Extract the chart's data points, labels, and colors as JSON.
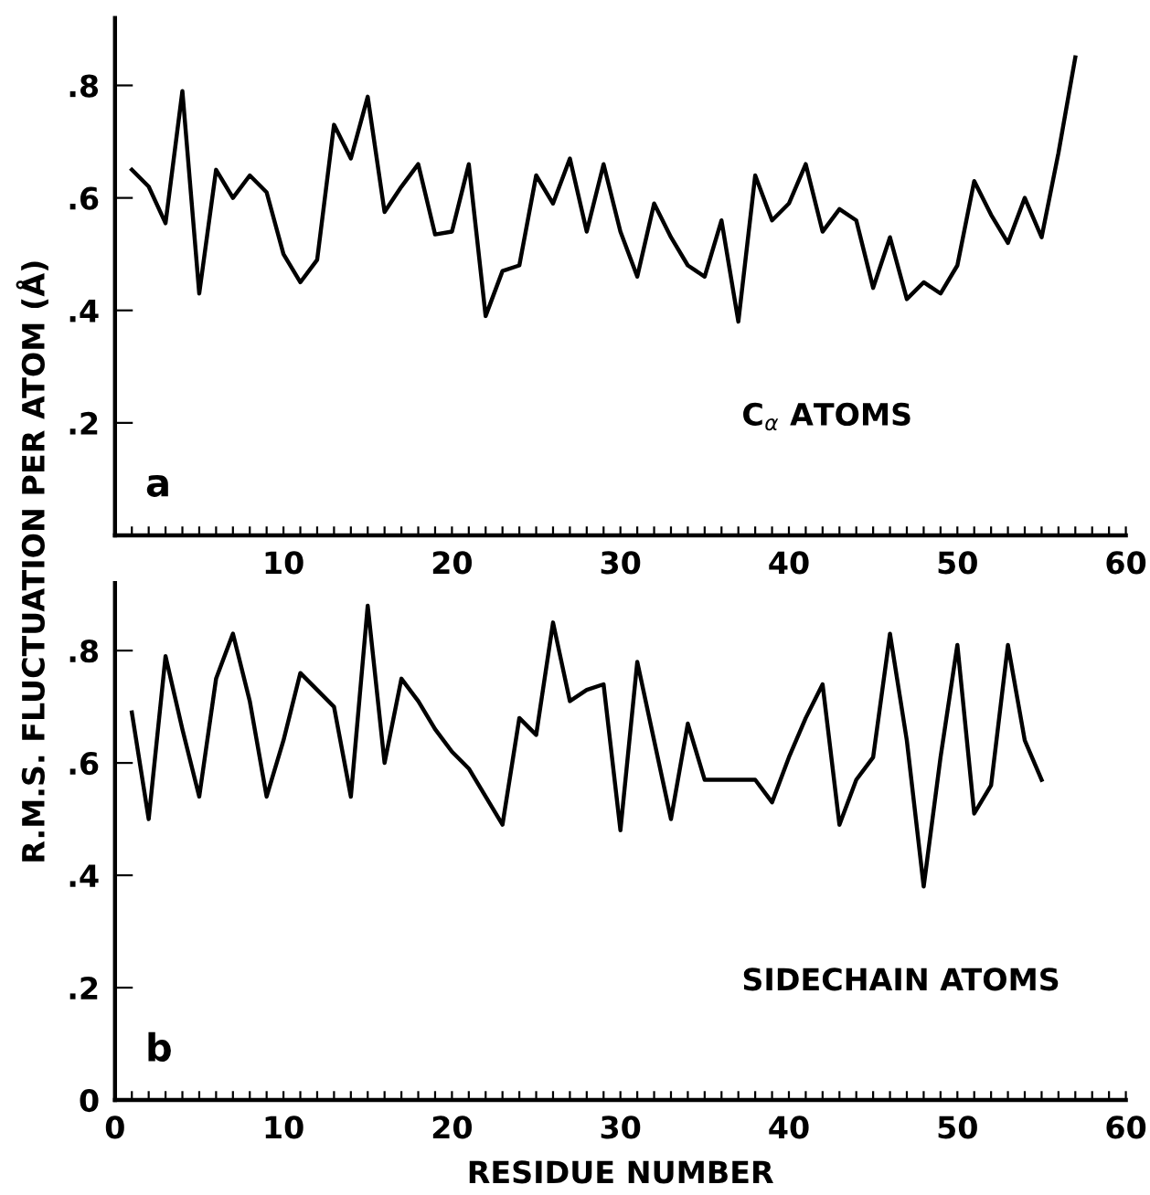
{
  "chart_data": [
    {
      "type": "line",
      "ylabel": "R.M.S. FLUCTUATION PER ATOM (Å)",
      "annotations": [
        "a",
        "C$_{α}$ ATOMS"
      ],
      "x": [
        1,
        2,
        3,
        4,
        5,
        6,
        7,
        8,
        9,
        10,
        11,
        12,
        13,
        14,
        15,
        16,
        17,
        18,
        19,
        20,
        21,
        22,
        23,
        24,
        25,
        26,
        27,
        28,
        29,
        30,
        31,
        32,
        33,
        34,
        35,
        36,
        37,
        38,
        39,
        40,
        41,
        42,
        43,
        44,
        45,
        46,
        47,
        48,
        49,
        50,
        51,
        52,
        53,
        54,
        55,
        56,
        57
      ],
      "series": [
        {
          "color": "#000000",
          "values": [
            0.65,
            0.62,
            0.555,
            0.79,
            0.43,
            0.65,
            0.6,
            0.64,
            0.61,
            0.5,
            0.45,
            0.49,
            0.73,
            0.67,
            0.78,
            0.575,
            0.62,
            0.66,
            0.535,
            0.54,
            0.66,
            0.39,
            0.47,
            0.48,
            0.64,
            0.59,
            0.67,
            0.54,
            0.66,
            0.54,
            0.46,
            0.59,
            0.53,
            0.48,
            0.46,
            0.56,
            0.38,
            0.64,
            0.56,
            0.59,
            0.66,
            0.54,
            0.58,
            0.56,
            0.44,
            0.53,
            0.42,
            0.45,
            0.43,
            0.48,
            0.63,
            0.57,
            0.52,
            0.6,
            0.53,
            0.68,
            0.85
          ]
        }
      ],
      "xlim": [
        0,
        60
      ],
      "ylim": [
        0,
        0.92
      ],
      "xticks": [
        {
          "value": 0,
          "label": null
        },
        {
          "value": 1,
          "label": null
        },
        {
          "value": 2,
          "label": null
        },
        {
          "value": 3,
          "label": null
        },
        {
          "value": 4,
          "label": null
        },
        {
          "value": 5,
          "label": null
        },
        {
          "value": 6,
          "label": null
        },
        {
          "value": 7,
          "label": null
        },
        {
          "value": 8,
          "label": null
        },
        {
          "value": 9,
          "label": null
        },
        10,
        {
          "value": 11,
          "label": null
        },
        {
          "value": 12,
          "label": null
        },
        {
          "value": 13,
          "label": null
        },
        {
          "value": 14,
          "label": null
        },
        {
          "value": 15,
          "label": null
        },
        {
          "value": 16,
          "label": null
        },
        {
          "value": 17,
          "label": null
        },
        {
          "value": 18,
          "label": null
        },
        {
          "value": 19,
          "label": null
        },
        20,
        {
          "value": 21,
          "label": null
        },
        {
          "value": 22,
          "label": null
        },
        {
          "value": 23,
          "label": null
        },
        {
          "value": 24,
          "label": null
        },
        {
          "value": 25,
          "label": null
        },
        {
          "value": 26,
          "label": null
        },
        {
          "value": 27,
          "label": null
        },
        {
          "value": 28,
          "label": null
        },
        {
          "value": 29,
          "label": null
        },
        30,
        {
          "value": 31,
          "label": null
        },
        {
          "value": 32,
          "label": null
        },
        {
          "value": 33,
          "label": null
        },
        {
          "value": 34,
          "label": null
        },
        {
          "value": 35,
          "label": null
        },
        {
          "value": 36,
          "label": null
        },
        {
          "value": 37,
          "label": null
        },
        {
          "value": 38,
          "label": null
        },
        {
          "value": 39,
          "label": null
        },
        40,
        {
          "value": 41,
          "label": null
        },
        {
          "value": 42,
          "label": null
        },
        {
          "value": 43,
          "label": null
        },
        {
          "value": 44,
          "label": null
        },
        {
          "value": 45,
          "label": null
        },
        {
          "value": 46,
          "label": null
        },
        {
          "value": 47,
          "label": null
        },
        {
          "value": 48,
          "label": null
        },
        {
          "value": 49,
          "label": null
        },
        50,
        {
          "value": 51,
          "label": null
        },
        {
          "value": 52,
          "label": null
        },
        {
          "value": 53,
          "label": null
        },
        {
          "value": 54,
          "label": null
        },
        {
          "value": 55,
          "label": null
        },
        {
          "value": 56,
          "label": null
        },
        {
          "value": 57,
          "label": null
        },
        {
          "value": 58,
          "label": null
        },
        {
          "value": 59,
          "label": null
        },
        60
      ],
      "yticks": [
        {
          "value": 0.2,
          "label": ".2"
        },
        {
          "value": 0.4,
          "label": ".4"
        },
        {
          "value": 0.6,
          "label": ".6"
        },
        {
          "value": 0.8,
          "label": ".8"
        }
      ],
      "grid": false,
      "marker": "none",
      "line_style": "solid"
    },
    {
      "type": "line",
      "xlabel": "RESIDUE NUMBER",
      "annotations": [
        "b",
        "SIDECHAIN ATOMS"
      ],
      "x": [
        1,
        2,
        3,
        4,
        5,
        6,
        7,
        8,
        9,
        10,
        11,
        12,
        13,
        14,
        15,
        16,
        17,
        18,
        19,
        20,
        21,
        22,
        23,
        24,
        25,
        26,
        27,
        28,
        29,
        30,
        31,
        32,
        33,
        34,
        35,
        36,
        37,
        38,
        39,
        40,
        41,
        42,
        43,
        44,
        45,
        46,
        47,
        48,
        49,
        50,
        51,
        52,
        53,
        54,
        55
      ],
      "series": [
        {
          "color": "#000000",
          "values": [
            0.69,
            0.5,
            0.79,
            0.66,
            0.54,
            0.75,
            0.83,
            0.71,
            0.54,
            0.64,
            0.76,
            0.73,
            0.7,
            0.54,
            0.88,
            0.6,
            0.75,
            0.71,
            0.66,
            0.62,
            0.59,
            0.54,
            0.49,
            0.68,
            0.65,
            0.85,
            0.71,
            0.73,
            0.74,
            0.48,
            0.78,
            0.64,
            0.5,
            0.67,
            0.57,
            0.57,
            0.57,
            0.57,
            0.53,
            0.61,
            0.68,
            0.74,
            0.49,
            0.57,
            0.61,
            0.83,
            0.64,
            0.38,
            0.61,
            0.81,
            0.51,
            0.56,
            0.81,
            0.64,
            0.57
          ]
        }
      ],
      "xlim": [
        0,
        60
      ],
      "ylim": [
        0,
        0.92
      ],
      "xticks": [
        0,
        {
          "value": 1,
          "label": null
        },
        {
          "value": 2,
          "label": null
        },
        {
          "value": 3,
          "label": null
        },
        {
          "value": 4,
          "label": null
        },
        {
          "value": 5,
          "label": null
        },
        {
          "value": 6,
          "label": null
        },
        {
          "value": 7,
          "label": null
        },
        {
          "value": 8,
          "label": null
        },
        {
          "value": 9,
          "label": null
        },
        10,
        {
          "value": 11,
          "label": null
        },
        {
          "value": 12,
          "label": null
        },
        {
          "value": 13,
          "label": null
        },
        {
          "value": 14,
          "label": null
        },
        {
          "value": 15,
          "label": null
        },
        {
          "value": 16,
          "label": null
        },
        {
          "value": 17,
          "label": null
        },
        {
          "value": 18,
          "label": null
        },
        {
          "value": 19,
          "label": null
        },
        20,
        {
          "value": 21,
          "label": null
        },
        {
          "value": 22,
          "label": null
        },
        {
          "value": 23,
          "label": null
        },
        {
          "value": 24,
          "label": null
        },
        {
          "value": 25,
          "label": null
        },
        {
          "value": 26,
          "label": null
        },
        {
          "value": 27,
          "label": null
        },
        {
          "value": 28,
          "label": null
        },
        {
          "value": 29,
          "label": null
        },
        30,
        {
          "value": 31,
          "label": null
        },
        {
          "value": 32,
          "label": null
        },
        {
          "value": 33,
          "label": null
        },
        {
          "value": 34,
          "label": null
        },
        {
          "value": 35,
          "label": null
        },
        {
          "value": 36,
          "label": null
        },
        {
          "value": 37,
          "label": null
        },
        {
          "value": 38,
          "label": null
        },
        {
          "value": 39,
          "label": null
        },
        40,
        {
          "value": 41,
          "label": null
        },
        {
          "value": 42,
          "label": null
        },
        {
          "value": 43,
          "label": null
        },
        {
          "value": 44,
          "label": null
        },
        {
          "value": 45,
          "label": null
        },
        {
          "value": 46,
          "label": null
        },
        {
          "value": 47,
          "label": null
        },
        {
          "value": 48,
          "label": null
        },
        {
          "value": 49,
          "label": null
        },
        50,
        {
          "value": 51,
          "label": null
        },
        {
          "value": 52,
          "label": null
        },
        {
          "value": 53,
          "label": null
        },
        {
          "value": 54,
          "label": null
        },
        {
          "value": 55,
          "label": null
        },
        {
          "value": 56,
          "label": null
        },
        {
          "value": 57,
          "label": null
        },
        {
          "value": 58,
          "label": null
        },
        {
          "value": 59,
          "label": null
        },
        60
      ],
      "yticks": [
        {
          "value": 0,
          "label": "0"
        },
        {
          "value": 0.2,
          "label": ".2"
        },
        {
          "value": 0.4,
          "label": ".4"
        },
        {
          "value": 0.6,
          "label": ".6"
        },
        {
          "value": 0.8,
          "label": ".8"
        }
      ],
      "grid": false,
      "marker": "none",
      "line_style": "solid"
    }
  ]
}
